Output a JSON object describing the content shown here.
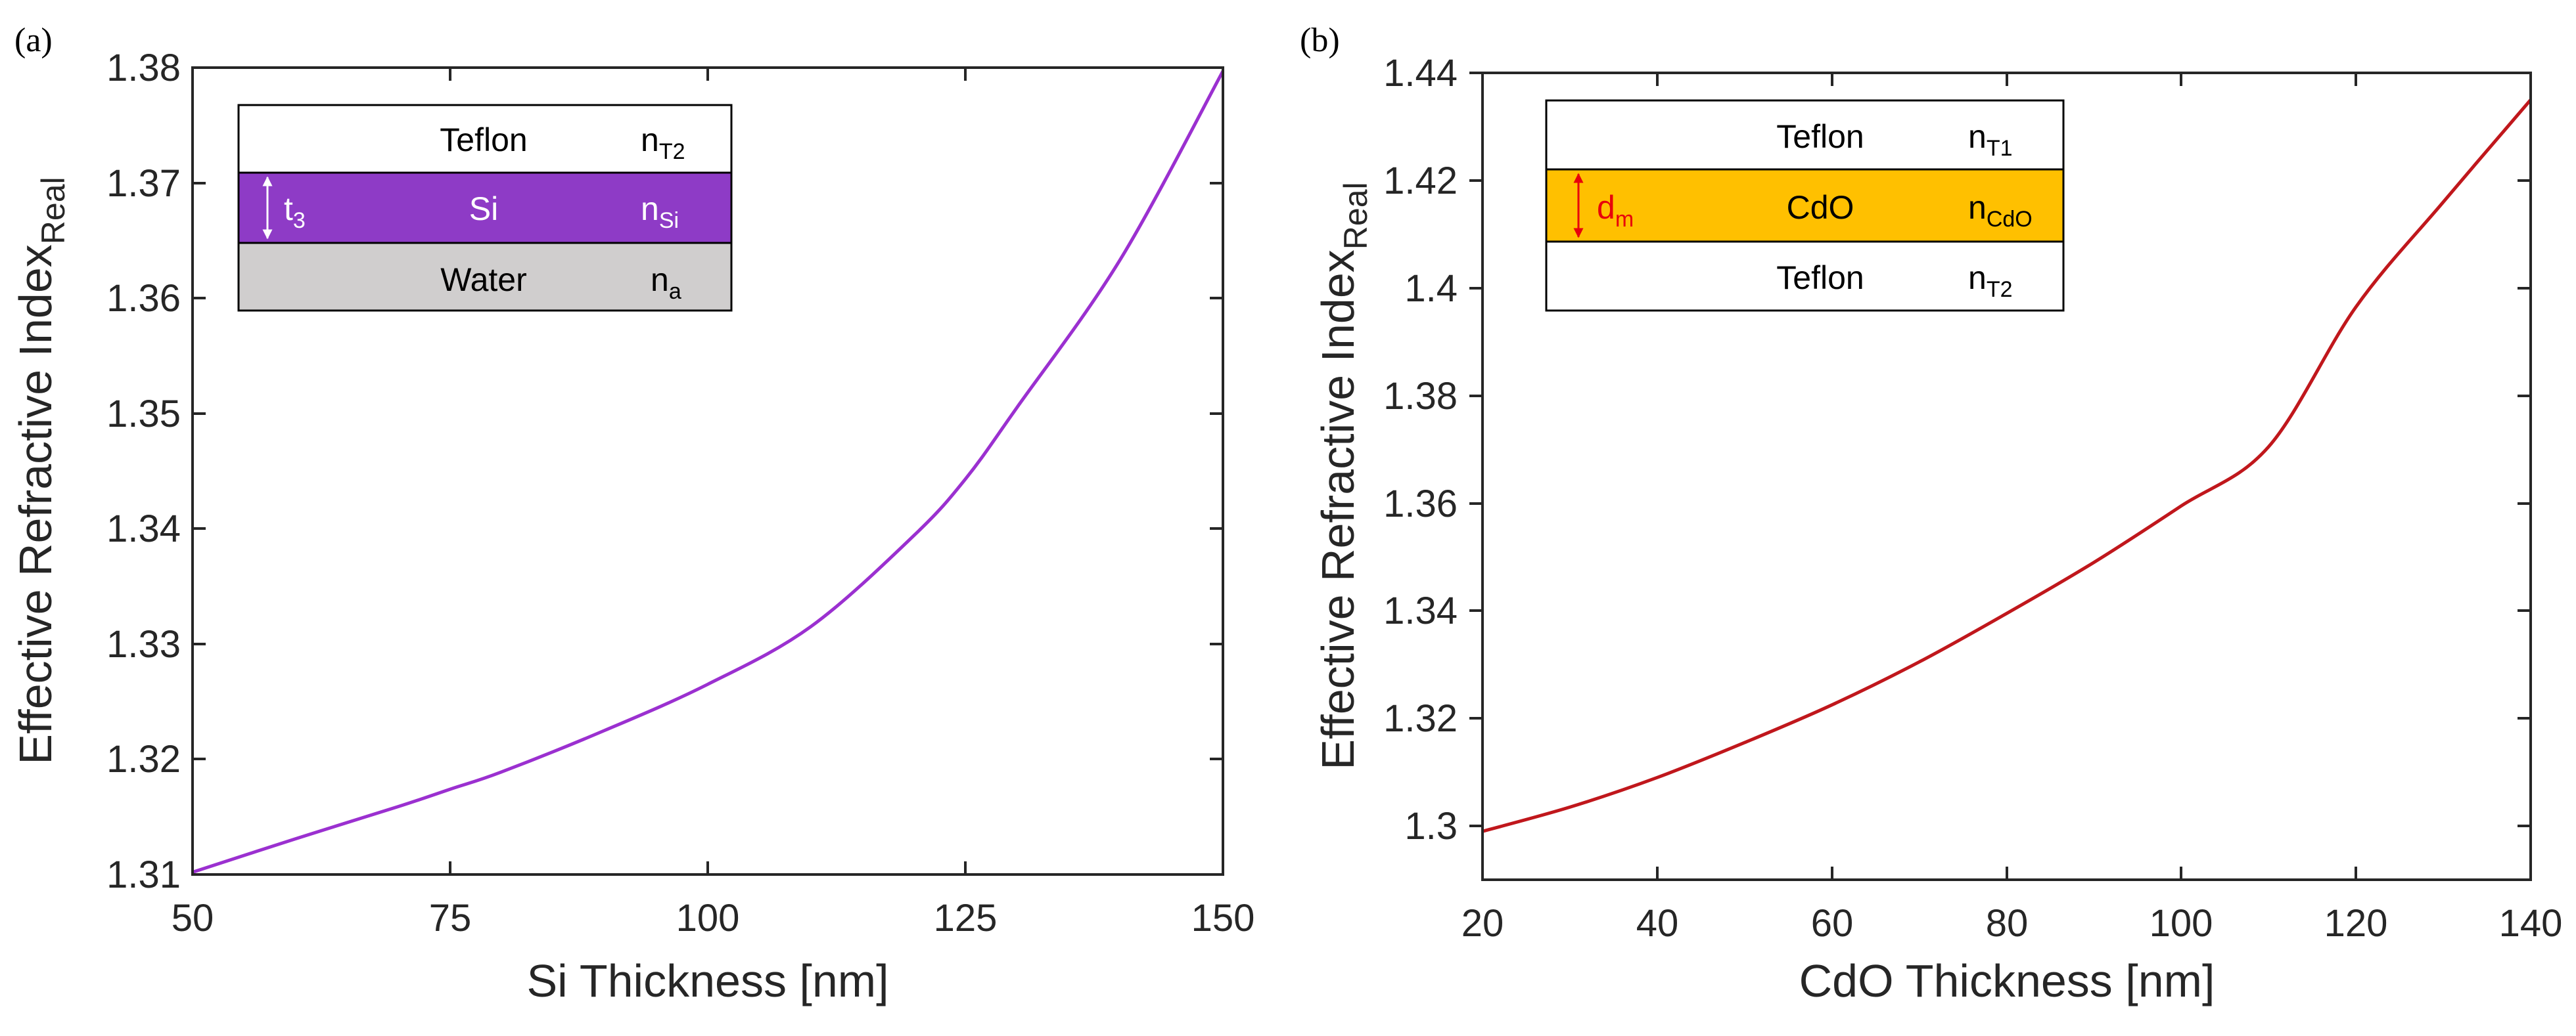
{
  "colors": {
    "series_a": "#9B30D0",
    "series_b": "#C0171C",
    "si_layer": "#8E3BC6",
    "cdo_layer": "#FFC000",
    "water_layer": "#D0CECE",
    "dm_arrow": "#E8000B"
  },
  "chart_data": [
    {
      "type": "line",
      "panel_label": "(a)",
      "title": "",
      "xlabel": "Si Thickness [nm]",
      "ylabel": "Effective Refractive Index",
      "ylabel_sub": "Real",
      "xlim": [
        50,
        150
      ],
      "ylim": [
        1.31,
        1.38
      ],
      "xticks": [
        50,
        75,
        100,
        125,
        150
      ],
      "xtick_labels": [
        "50",
        "75",
        "100",
        "125",
        "150"
      ],
      "yticks": [
        1.31,
        1.32,
        1.33,
        1.34,
        1.35,
        1.36,
        1.37,
        1.38
      ],
      "ytick_labels": [
        "1.31",
        "1.32",
        "1.33",
        "1.34",
        "1.35",
        "1.36",
        "1.37",
        "1.38"
      ],
      "grid": false,
      "series": [
        {
          "name": "Si",
          "x": [
            50,
            60,
            70,
            75,
            80,
            90,
            100,
            110,
            120,
            125,
            130,
            140,
            150
          ],
          "values": [
            1.3102,
            1.3131,
            1.3159,
            1.3174,
            1.3189,
            1.3225,
            1.3265,
            1.3315,
            1.3394,
            1.3443,
            1.3505,
            1.3633,
            1.3797
          ]
        }
      ],
      "inset": {
        "layers": [
          {
            "label": "Teflon",
            "index_base": "n",
            "index_sub": "T2",
            "thickness": ""
          },
          {
            "label": "Si",
            "index_base": "n",
            "index_sub": "Si",
            "thickness": "t",
            "thickness_sub": "3"
          },
          {
            "label": "Water",
            "index_base": "n",
            "index_sub": "a",
            "thickness": ""
          }
        ]
      }
    },
    {
      "type": "line",
      "panel_label": "(b)",
      "title": "",
      "xlabel": "CdO Thickness [nm]",
      "ylabel": "Effective Refractive Index",
      "ylabel_sub": "Real",
      "xlim": [
        20,
        140
      ],
      "ylim": [
        1.29,
        1.44
      ],
      "xticks": [
        20,
        40,
        60,
        80,
        100,
        120,
        140
      ],
      "xtick_labels": [
        "20",
        "40",
        "60",
        "80",
        "100",
        "120",
        "140"
      ],
      "yticks": [
        1.3,
        1.32,
        1.34,
        1.36,
        1.38,
        1.4,
        1.42,
        1.44
      ],
      "ytick_labels": [
        "1.3",
        "1.32",
        "1.34",
        "1.36",
        "1.38",
        "1.4",
        "1.42",
        "1.44"
      ],
      "grid": false,
      "series": [
        {
          "name": "CdO",
          "x": [
            20,
            30,
            40,
            50,
            60,
            70,
            80,
            90,
            100,
            110,
            120,
            130,
            140
          ],
          "values": [
            1.299,
            1.3035,
            1.309,
            1.3155,
            1.3225,
            1.3305,
            1.3395,
            1.349,
            1.3595,
            1.3705,
            1.3965,
            1.416,
            1.435
          ]
        }
      ],
      "inset": {
        "layers": [
          {
            "label": "Teflon",
            "index_base": "n",
            "index_sub": "T1",
            "thickness": ""
          },
          {
            "label": "CdO",
            "index_base": "n",
            "index_sub": "CdO",
            "thickness": "d",
            "thickness_sub": "m"
          },
          {
            "label": "Teflon",
            "index_base": "n",
            "index_sub": "T2",
            "thickness": ""
          }
        ]
      }
    }
  ]
}
